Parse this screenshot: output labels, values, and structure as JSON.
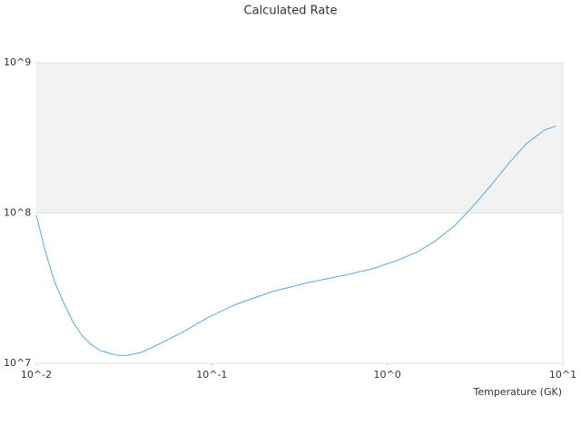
{
  "chart_data": {
    "type": "line",
    "title": "Calculated Rate",
    "xlabel": "Temperature (GK)",
    "x": [
      0.01,
      0.01127,
      0.01268,
      0.01429,
      0.0161,
      0.01815,
      0.0204,
      0.023,
      0.0259,
      0.0292,
      0.0329,
      0.0394,
      0.0499,
      0.0673,
      0.0962,
      0.1374,
      0.221,
      0.356,
      0.574,
      0.82,
      1.17,
      1.49,
      1.89,
      2.4,
      3.04,
      3.86,
      4.9,
      6.21,
      7.88,
      9.1
    ],
    "series": [
      {
        "color": "#5aa5e6",
        "values": [
          96600000,
          55300000,
          35000000,
          25400000,
          19000000,
          15400000,
          13400000,
          12200000,
          11700000,
          11300000,
          11300000,
          11800000,
          13400000,
          16000000,
          20300000,
          24700000,
          30000000,
          34500000,
          38600000,
          42500000,
          48900000,
          55300000,
          65500000,
          81700000,
          109000000,
          151000000,
          213000000,
          290000000,
          357000000,
          378000000
        ]
      }
    ],
    "xlog": true,
    "ylog": true,
    "xlim": [
      0.01,
      10
    ],
    "ylim": [
      10000000,
      1000000000
    ],
    "xticks": [
      {
        "value": 0.01,
        "label": "10^-2"
      },
      {
        "value": 0.1,
        "label": "10^-1"
      },
      {
        "value": 1,
        "label": "10^0"
      },
      {
        "value": 10,
        "label": "10^1"
      }
    ],
    "yticks": [
      {
        "value": 10000000,
        "label": "10^7"
      },
      {
        "value": 100000000,
        "label": "10^8"
      },
      {
        "value": 1000000000,
        "label": "10^9"
      }
    ],
    "band_color": "#f2f2f2",
    "grid": true
  }
}
